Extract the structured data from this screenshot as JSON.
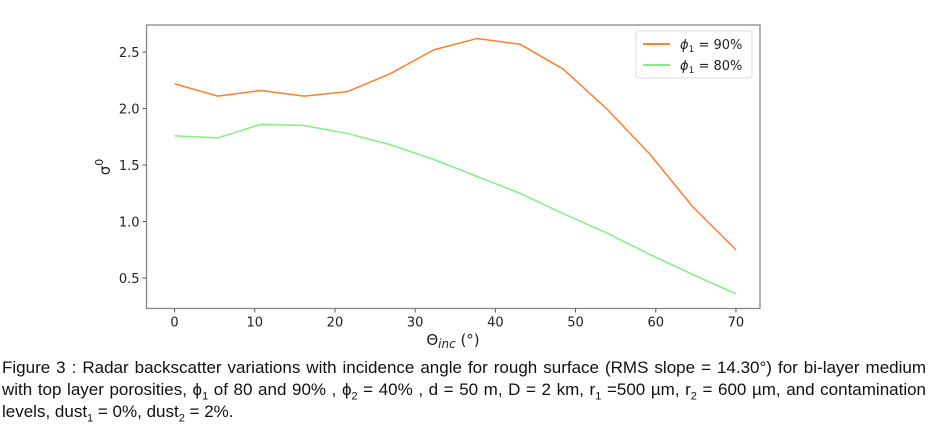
{
  "chart_data": {
    "type": "line",
    "title": "",
    "xlabel": "Θ",
    "xlabel_sub": "inc",
    "xlabel_unit": " (°)",
    "ylabel": "σ",
    "ylabel_sup": "0",
    "xlim": [
      -3.5,
      73
    ],
    "ylim": [
      0.23,
      2.74
    ],
    "xticks": [
      0,
      10,
      20,
      30,
      40,
      50,
      60,
      70
    ],
    "xtick_labels": [
      "0",
      "10",
      "20",
      "30",
      "40",
      "50",
      "60",
      "70"
    ],
    "yticks": [
      0.5,
      1.0,
      1.5,
      2.0,
      2.5
    ],
    "ytick_labels": [
      "0.5",
      "1.0",
      "1.5",
      "2.0",
      "2.5"
    ],
    "grid": false,
    "legend_position": "top-right",
    "x": [
      0,
      5.38,
      10.77,
      16.15,
      21.54,
      26.92,
      32.31,
      37.69,
      43.08,
      48.46,
      53.85,
      59.23,
      64.62,
      70
    ],
    "series": [
      {
        "name": "ϕ1 = 90%",
        "legend_symbol": "ϕ",
        "legend_sub": "1",
        "legend_rest": " = 90%",
        "color": "#ff7f2a",
        "values": [
          2.22,
          2.11,
          2.16,
          2.11,
          2.15,
          2.31,
          2.52,
          2.62,
          2.57,
          2.35,
          2.0,
          1.6,
          1.13,
          0.75
        ]
      },
      {
        "name": "ϕ1 = 80%",
        "legend_symbol": "ϕ",
        "legend_sub": "1",
        "legend_rest": " = 80%",
        "color": "#80f080",
        "values": [
          1.76,
          1.74,
          1.86,
          1.85,
          1.78,
          1.68,
          1.55,
          1.4,
          1.25,
          1.07,
          0.9,
          0.71,
          0.53,
          0.36
        ]
      }
    ]
  },
  "caption": {
    "parts": [
      "Figure 3 : Radar backscatter variations with incidence angle for rough surface (RMS slope = 14.30°) for bi-layer medium with top layer porosities, ϕ",
      "1",
      " of 80 and 90% , ϕ",
      "2",
      " = 40% , d = 50 m, D = 2 km, r",
      "1",
      " =500 µm, r",
      "2",
      " = 600 µm, and contamination levels, dust",
      "1",
      " = 0%, dust",
      "2",
      " = 2%."
    ]
  }
}
